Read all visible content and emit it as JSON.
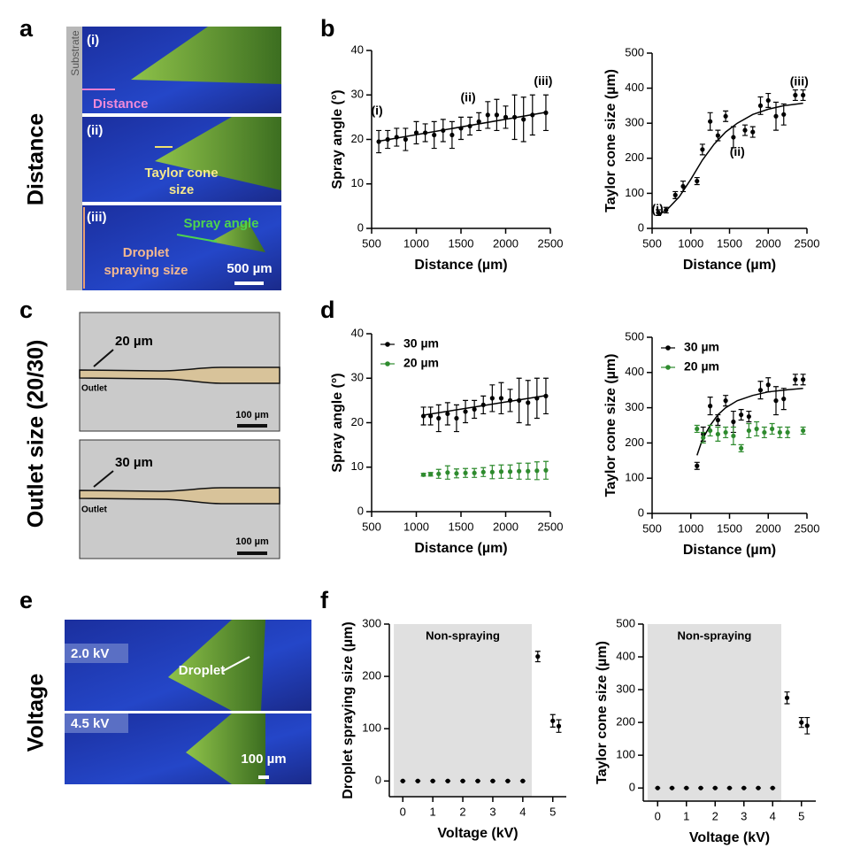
{
  "panel_a": {
    "label": "a",
    "side_label": "Distance",
    "substrate": "Substrate",
    "tags": [
      "(i)",
      "(ii)",
      "(iii)"
    ],
    "distance": "Distance",
    "taylor_cone": [
      "Taylor cone",
      "size"
    ],
    "spray_angle": "Spray angle",
    "droplet": [
      "Droplet",
      "spraying size"
    ],
    "scale_bar": "500 µm"
  },
  "panel_c": {
    "label": "c",
    "side_label": "Outlet size (20/30)",
    "frames": [
      {
        "size": "20 µm",
        "outlet": "Outlet",
        "scale_bar": "100 µm"
      },
      {
        "size": "30 µm",
        "outlet": "Outlet",
        "scale_bar": "100 µm"
      }
    ]
  },
  "panel_e": {
    "label": "e",
    "side_label": "Voltage",
    "frames": [
      {
        "voltage": "2.0 kV",
        "annotation": "Droplet"
      },
      {
        "voltage": "4.5 kV",
        "scale_bar": "100 µm"
      }
    ]
  },
  "chart_panel_labels": [
    "b",
    "d",
    "f"
  ],
  "chart_data": [
    {
      "type": "scatter",
      "x_label": "Distance (µm)",
      "y_label": "Spray angle (°)",
      "xlim": [
        500,
        2500
      ],
      "xticks": [
        500,
        1000,
        1500,
        2000,
        2500
      ],
      "ylim": [
        0,
        40
      ],
      "yticks": [
        0,
        10,
        20,
        30,
        40
      ],
      "series": [
        {
          "color": "#000000",
          "x": [
            580,
            680,
            780,
            880,
            1000,
            1100,
            1200,
            1300,
            1400,
            1500,
            1600,
            1700,
            1800,
            1900,
            2000,
            2100,
            2200,
            2300,
            2450
          ],
          "values": [
            19.5,
            20,
            20.5,
            20,
            21.5,
            21.5,
            21,
            22,
            21,
            22.5,
            23,
            24,
            25.5,
            25.5,
            25,
            25,
            24.5,
            25.5,
            26
          ],
          "errors": [
            2.5,
            2,
            2,
            2.5,
            2.5,
            2,
            3,
            2.5,
            3,
            2.5,
            2,
            2,
            3,
            3.5,
            2.5,
            5,
            5,
            4.5,
            4
          ]
        },
        {
          "type": "line",
          "color": "#000000",
          "x": [
            580,
            2450
          ],
          "values": [
            19.6,
            26.1
          ]
        }
      ],
      "annotations": [
        {
          "text": "(i)",
          "x": 560,
          "y": 26.3
        },
        {
          "text": "(ii)",
          "x": 1580,
          "y": 29.3
        },
        {
          "text": "(iii)",
          "x": 2420,
          "y": 33
        }
      ]
    },
    {
      "type": "scatter",
      "x_label": "Distance (µm)",
      "y_label": "Taylor cone size (µm)",
      "xlim": [
        500,
        2500
      ],
      "xticks": [
        500,
        1000,
        1500,
        2000,
        2500
      ],
      "ylim": [
        0,
        500
      ],
      "yticks": [
        0,
        100,
        200,
        300,
        400,
        500
      ],
      "series": [
        {
          "color": "#000000",
          "x": [
            580,
            680,
            800,
            900,
            1080,
            1150,
            1250,
            1350,
            1450,
            1550,
            1700,
            1800,
            1900,
            2000,
            2100,
            2200,
            2350,
            2450
          ],
          "values": [
            45,
            52,
            95,
            120,
            135,
            225,
            305,
            265,
            320,
            260,
            280,
            275,
            350,
            365,
            320,
            325,
            380,
            380
          ],
          "errors": [
            8,
            8,
            10,
            15,
            10,
            15,
            25,
            15,
            15,
            30,
            15,
            15,
            25,
            20,
            40,
            30,
            15,
            15
          ]
        },
        {
          "type": "line",
          "color": "#000000",
          "x": [
            580,
            700,
            850,
            1000,
            1150,
            1300,
            1450,
            1600,
            1800,
            2000,
            2200,
            2450
          ],
          "values": [
            38,
            55,
            90,
            140,
            195,
            240,
            275,
            300,
            325,
            340,
            350,
            357
          ]
        }
      ],
      "annotations": [
        {
          "text": "(i)",
          "x": 570,
          "y": 53
        },
        {
          "text": "(ii)",
          "x": 1600,
          "y": 217
        },
        {
          "text": "(iii)",
          "x": 2400,
          "y": 417
        }
      ]
    },
    {
      "type": "scatter",
      "x_label": "Distance (µm)",
      "y_label": "Spray angle (°)",
      "xlim": [
        500,
        2500
      ],
      "xticks": [
        500,
        1000,
        1500,
        2000,
        2500
      ],
      "ylim": [
        0,
        40
      ],
      "yticks": [
        0,
        10,
        20,
        30,
        40
      ],
      "legend": "upper left",
      "series": [
        {
          "name": "30 µm",
          "color": "#000000",
          "x": [
            1080,
            1160,
            1250,
            1350,
            1450,
            1550,
            1650,
            1750,
            1850,
            1950,
            2050,
            2150,
            2250,
            2350,
            2450
          ],
          "values": [
            21.5,
            21.5,
            21,
            22,
            21,
            22.5,
            23,
            24,
            25.5,
            25.5,
            25,
            25,
            24.5,
            25.5,
            26
          ],
          "errors": [
            2,
            2,
            3,
            2.5,
            3,
            2.5,
            2,
            2,
            3,
            3.5,
            2.5,
            5,
            5,
            4.5,
            4
          ]
        },
        {
          "type": "line",
          "color": "#000000",
          "x": [
            1080,
            2450
          ],
          "values": [
            21.7,
            26.1
          ]
        },
        {
          "name": "20 µm",
          "color": "#2e8b2e",
          "x": [
            1080,
            1160,
            1250,
            1350,
            1450,
            1550,
            1650,
            1750,
            1850,
            1950,
            2050,
            2150,
            2250,
            2350,
            2450
          ],
          "values": [
            8.3,
            8.4,
            8.5,
            8.8,
            8.6,
            8.7,
            8.7,
            8.9,
            8.9,
            9,
            9,
            9.1,
            9.1,
            9.2,
            9.3
          ],
          "errors": [
            0.3,
            0.4,
            1,
            1.5,
            1,
            1,
            1,
            1,
            1.5,
            1.5,
            1.5,
            1.8,
            1.8,
            2,
            2
          ]
        }
      ]
    },
    {
      "type": "scatter",
      "x_label": "Distance (µm)",
      "y_label": "Taylor cone size (µm)",
      "xlim": [
        500,
        2500
      ],
      "xticks": [
        500,
        1000,
        1500,
        2000,
        2500
      ],
      "ylim": [
        0,
        500
      ],
      "yticks": [
        0,
        100,
        200,
        300,
        400,
        500
      ],
      "legend": "upper left",
      "series": [
        {
          "name": "30 µm",
          "color": "#000000",
          "x": [
            1080,
            1160,
            1250,
            1350,
            1450,
            1550,
            1650,
            1750,
            1900,
            2000,
            2100,
            2200,
            2350,
            2450
          ],
          "values": [
            135,
            225,
            305,
            265,
            320,
            260,
            280,
            275,
            350,
            365,
            320,
            325,
            380,
            380
          ],
          "errors": [
            10,
            20,
            25,
            15,
            15,
            30,
            15,
            15,
            25,
            20,
            40,
            30,
            15,
            15
          ]
        },
        {
          "type": "line",
          "color": "#000000",
          "x": [
            1080,
            1150,
            1250,
            1350,
            1450,
            1600,
            1800,
            2000,
            2200,
            2450
          ],
          "values": [
            165,
            210,
            250,
            280,
            300,
            320,
            335,
            345,
            350,
            355
          ]
        },
        {
          "name": "20 µm",
          "color": "#2e8b2e",
          "x": [
            1080,
            1160,
            1250,
            1350,
            1450,
            1550,
            1650,
            1750,
            1850,
            1950,
            2050,
            2150,
            2250,
            2450
          ],
          "values": [
            240,
            215,
            235,
            225,
            230,
            220,
            185,
            235,
            240,
            230,
            240,
            230,
            230,
            235
          ],
          "errors": [
            10,
            15,
            15,
            20,
            15,
            25,
            10,
            20,
            20,
            15,
            15,
            15,
            15,
            10
          ]
        }
      ]
    },
    {
      "type": "scatter",
      "x_label": "Voltage (kV)",
      "y_label": "Droplet spraying size (µm)",
      "xlim": [
        -0.45,
        5.45
      ],
      "xticks": [
        0,
        1,
        2,
        3,
        4,
        5
      ],
      "ylim": [
        -30,
        300
      ],
      "yticks": [
        0,
        100,
        200,
        300
      ],
      "shaded_region": {
        "x": [
          -0.3,
          4.3
        ],
        "label": "Non-spraying"
      },
      "series": [
        {
          "color": "#000000",
          "x": [
            0,
            0.5,
            1,
            1.5,
            2,
            2.5,
            3,
            3.5,
            4,
            4.5,
            5,
            5.2
          ],
          "values": [
            0,
            0,
            0,
            0,
            0,
            0,
            0,
            0,
            0,
            238,
            115,
            105
          ],
          "errors": [
            0,
            0,
            0,
            0,
            0,
            0,
            0,
            0,
            0,
            10,
            12,
            12
          ]
        }
      ]
    },
    {
      "type": "scatter",
      "x_label": "Voltage (kV)",
      "y_label": "Taylor cone size (µm)",
      "xlim": [
        -0.5,
        5.5
      ],
      "xticks": [
        0,
        1,
        2,
        3,
        4,
        5
      ],
      "ylim": [
        -40,
        500
      ],
      "yticks": [
        0,
        100,
        200,
        300,
        400,
        500
      ],
      "shaded_region": {
        "x": [
          -0.35,
          4.3
        ],
        "label": "Non-spraying"
      },
      "series": [
        {
          "color": "#000000",
          "x": [
            0,
            0.5,
            1,
            1.5,
            2,
            2.5,
            3,
            3.5,
            4,
            4.5,
            5,
            5.2
          ],
          "values": [
            0,
            0,
            0,
            0,
            0,
            0,
            0,
            0,
            0,
            275,
            200,
            190
          ],
          "errors": [
            0,
            0,
            0,
            0,
            0,
            0,
            0,
            0,
            0,
            18,
            15,
            25
          ]
        }
      ]
    }
  ]
}
